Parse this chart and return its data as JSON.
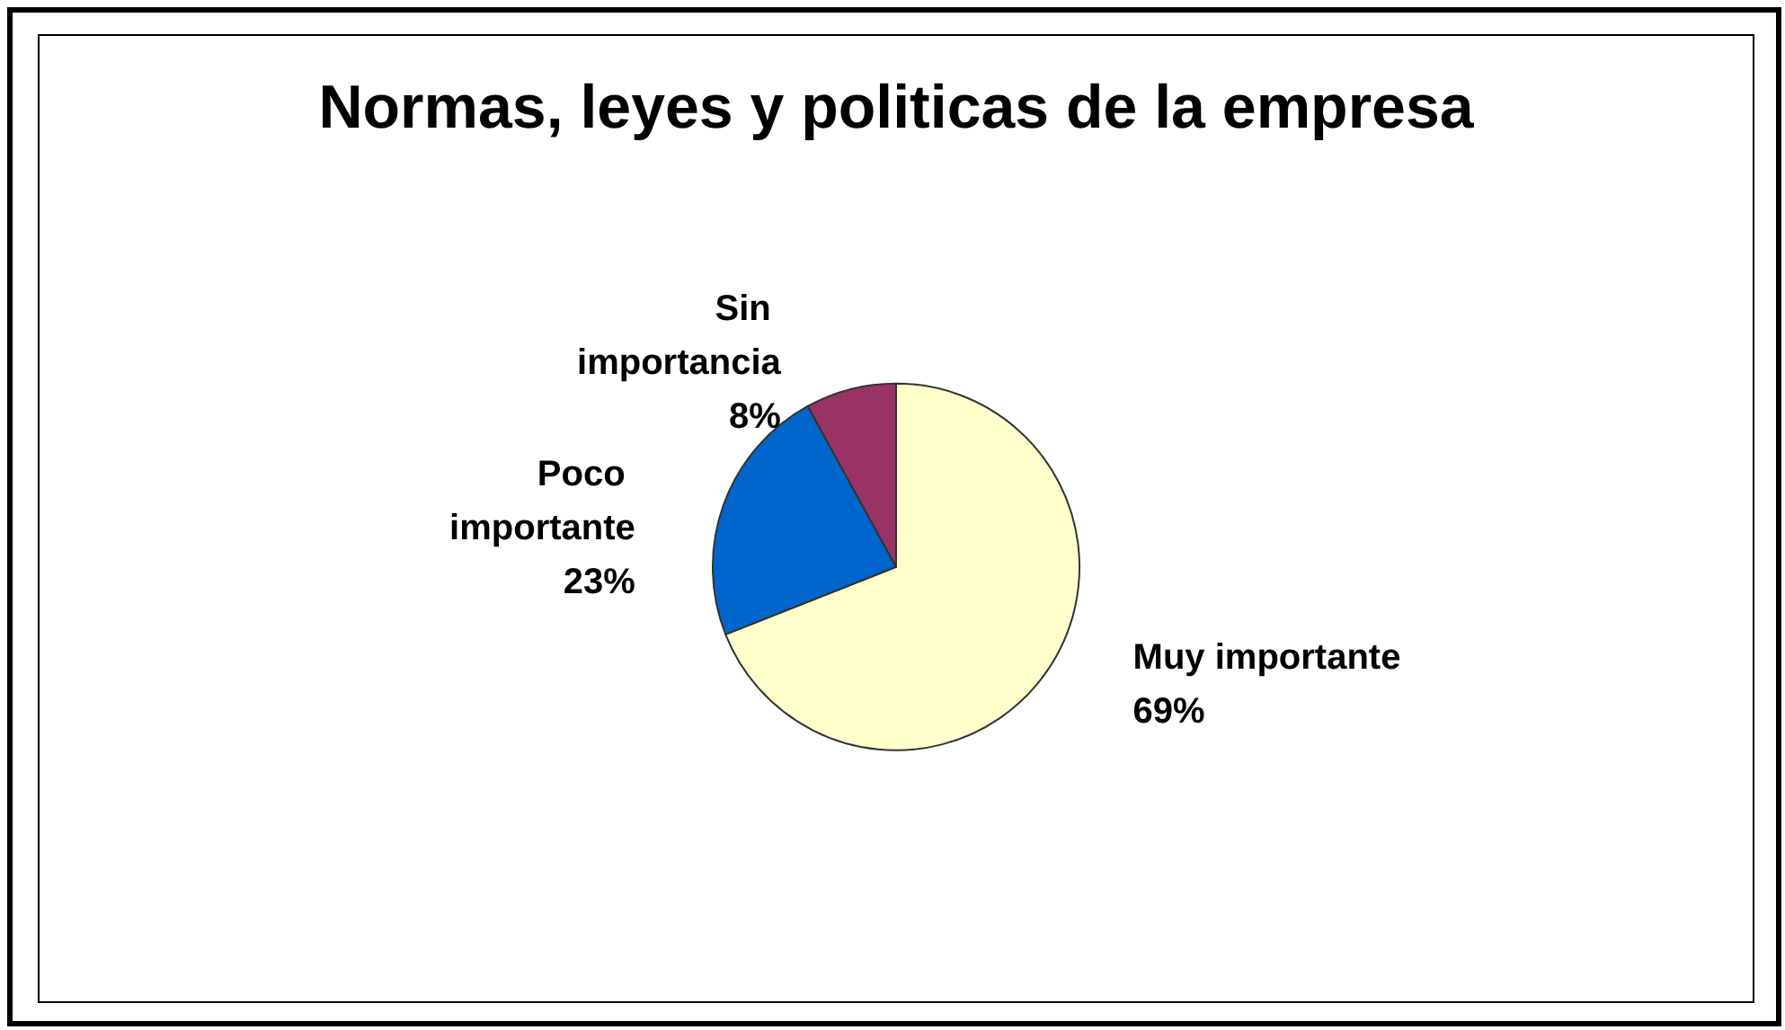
{
  "chart_data": {
    "type": "pie",
    "title": "Normas, leyes y politicas de la empresa",
    "categories": [
      "Muy importante",
      "Poco importante",
      "Sin importancia"
    ],
    "values": [
      69,
      23,
      8
    ],
    "value_labels": [
      "69%",
      "23%",
      "8%"
    ],
    "colors": [
      "#ffffcc",
      "#0066cc",
      "#993366"
    ],
    "legend": false
  }
}
